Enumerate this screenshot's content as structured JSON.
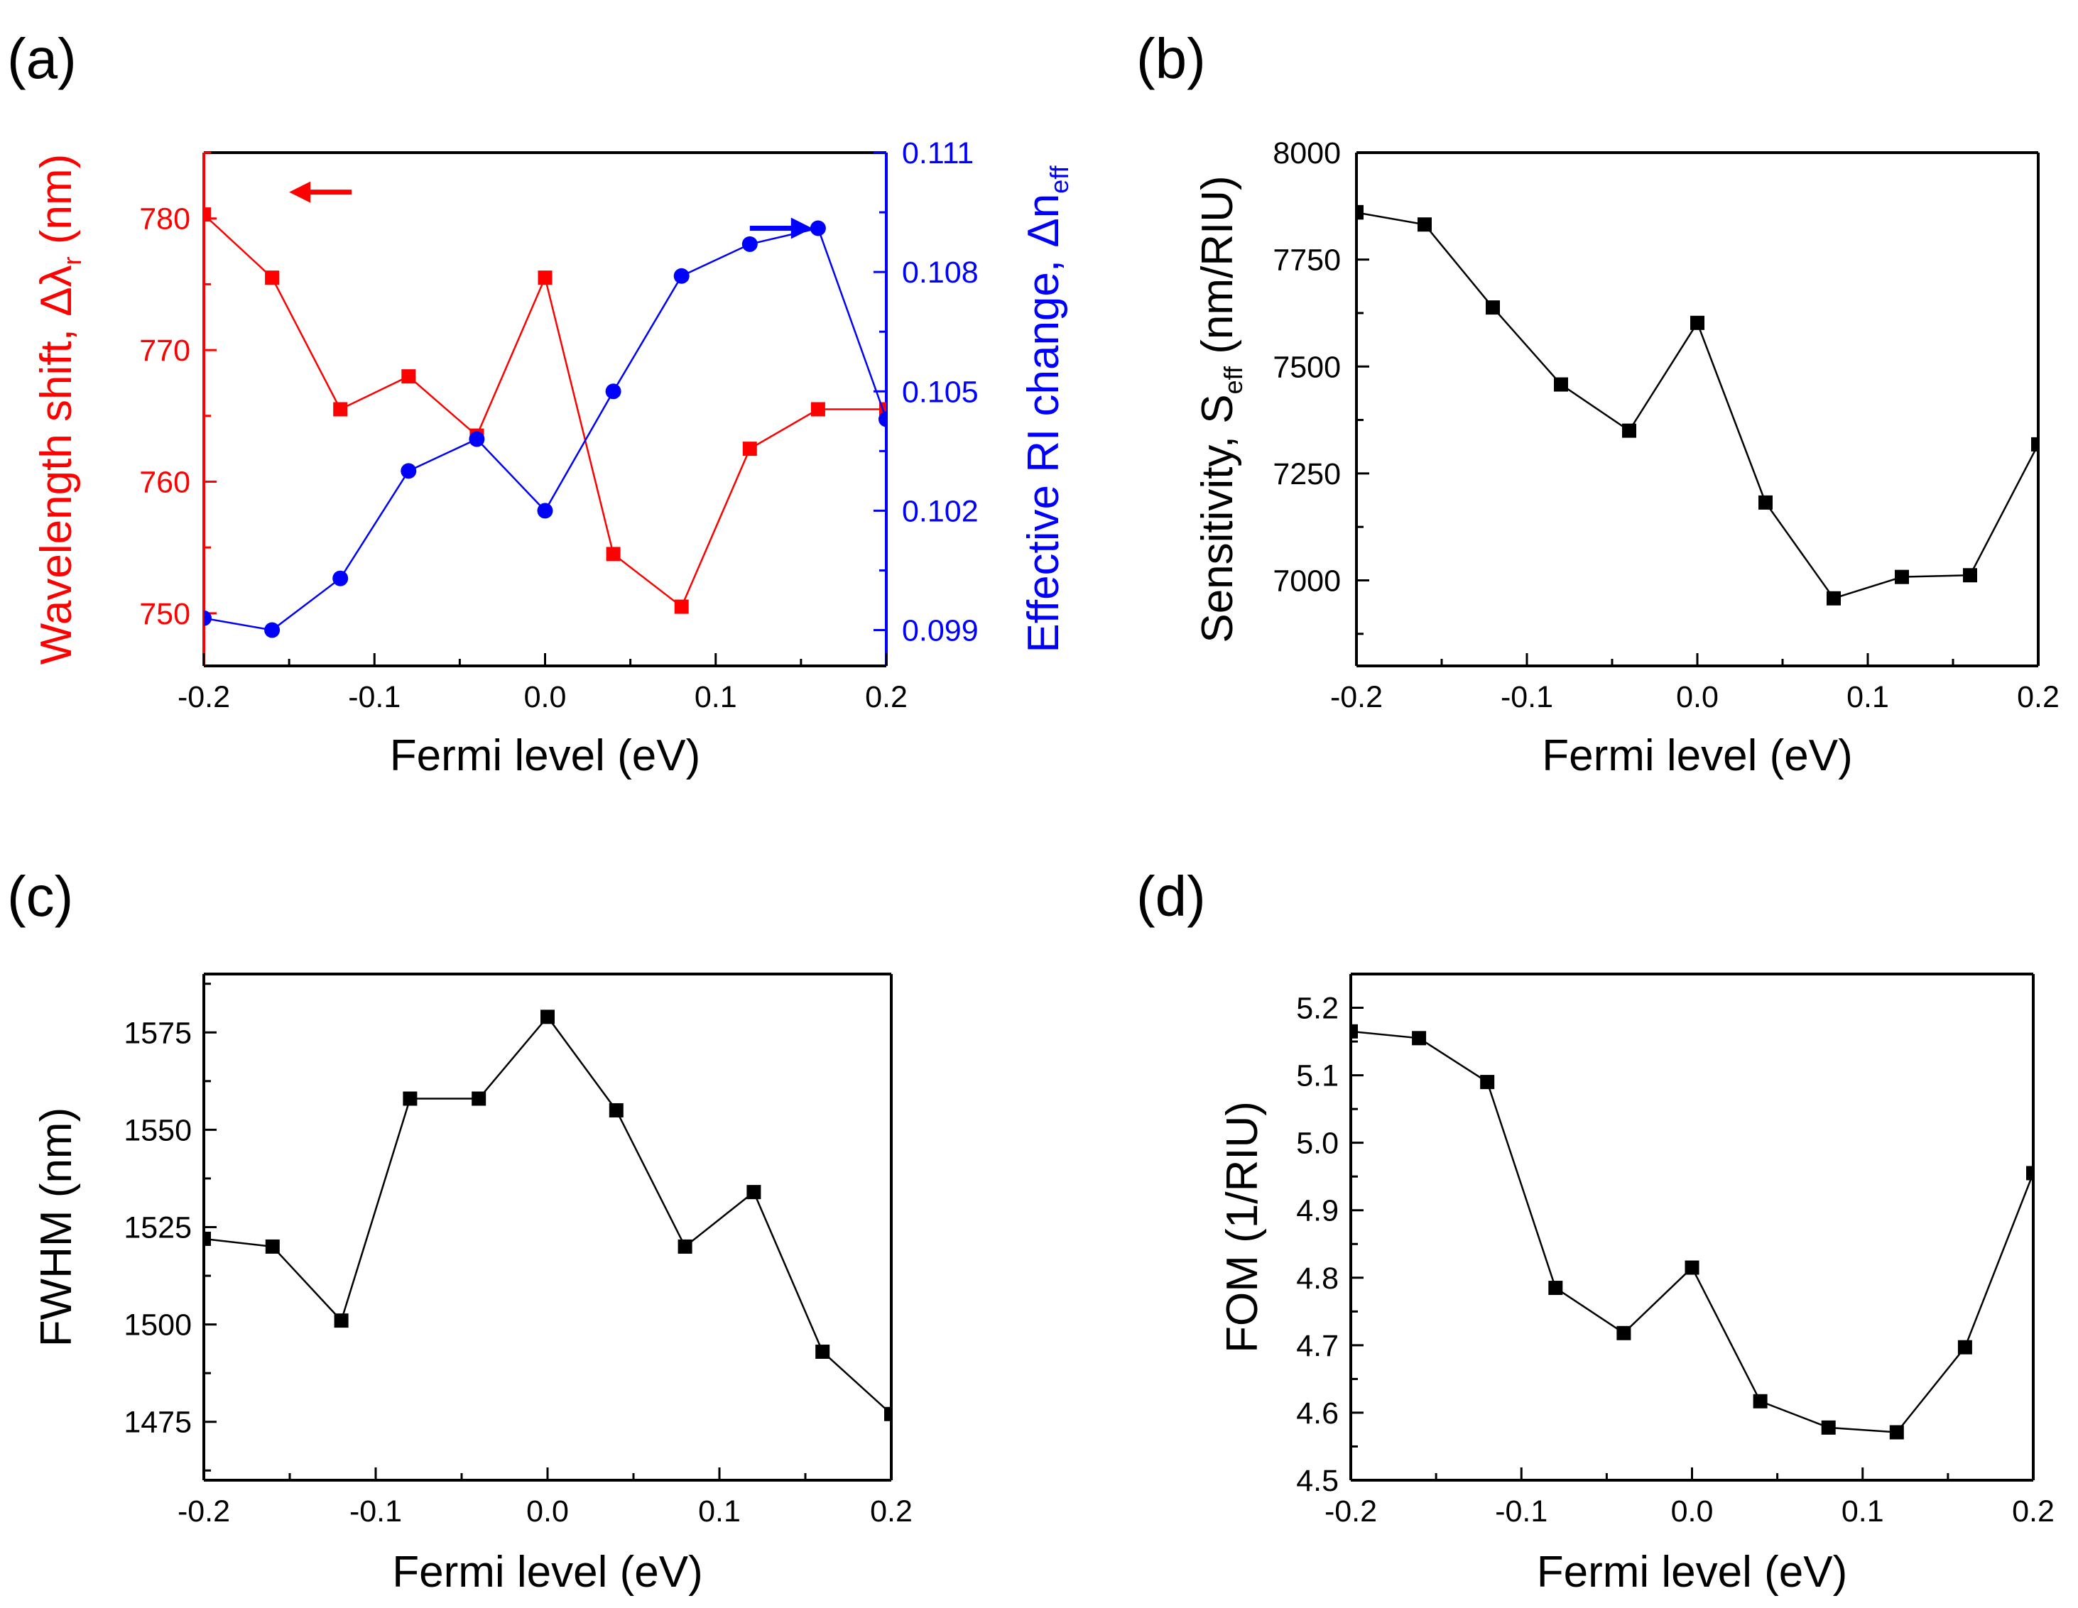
{
  "colors": {
    "red": "#ff0000",
    "blue": "#0000ff",
    "black": "#000000"
  },
  "chart_data": [
    {
      "id": "a",
      "panel_label": "(a)",
      "type": "line",
      "x": [
        -0.2,
        -0.16,
        -0.12,
        -0.08,
        -0.04,
        0.0,
        0.04,
        0.08,
        0.12,
        0.16,
        0.2
      ],
      "xlabel": "Fermi level (eV)",
      "xlim": [
        -0.2,
        0.2
      ],
      "xticks": [
        -0.2,
        -0.1,
        0.0,
        0.1,
        0.2
      ],
      "xtick_labels": [
        "-0.2",
        "-0.1",
        "0.0",
        "0.1",
        "0.2"
      ],
      "ylabel_left": {
        "text": "Wavelength shift, Δλ",
        "sub": "r",
        "suffix": " (nm)"
      },
      "ylabel_right": {
        "text": "Effective RI change, Δn",
        "sub": "eff",
        "suffix": ""
      },
      "ylim_left": [
        746,
        785
      ],
      "yticks_left": [
        750,
        760,
        770,
        780
      ],
      "ytick_labels_left": [
        "750",
        "760",
        "770",
        "780"
      ],
      "ylim_right": [
        0.0981,
        0.111
      ],
      "yticks_right": [
        0.099,
        0.102,
        0.105,
        0.108,
        0.111
      ],
      "ytick_labels_right": [
        "0.099",
        "0.102",
        "0.105",
        "0.108",
        "0.111"
      ],
      "series": [
        {
          "axis": "left",
          "marker": "square",
          "color": "red",
          "values": [
            780.3,
            775.5,
            765.5,
            768.0,
            763.5,
            775.5,
            754.5,
            750.5,
            762.5,
            765.5,
            765.5
          ]
        },
        {
          "axis": "right",
          "marker": "circle",
          "color": "blue",
          "values": [
            0.0993,
            0.099,
            0.1003,
            0.103,
            0.1038,
            0.102,
            0.105,
            0.1079,
            0.1087,
            0.1091,
            0.1043
          ]
        }
      ],
      "arrows": [
        {
          "direction": "left",
          "color": "red",
          "x": -0.15,
          "y": 782.0
        },
        {
          "direction": "right",
          "color": "blue",
          "x": 0.12,
          "y": 0.1091
        }
      ]
    },
    {
      "id": "b",
      "panel_label": "(b)",
      "type": "line",
      "x": [
        -0.2,
        -0.16,
        -0.12,
        -0.08,
        -0.04,
        0.0,
        0.04,
        0.08,
        0.12,
        0.16,
        0.2
      ],
      "xlabel": "Fermi level (eV)",
      "xlim": [
        -0.2,
        0.2
      ],
      "xticks": [
        -0.2,
        -0.1,
        0.0,
        0.1,
        0.2
      ],
      "xtick_labels": [
        "-0.2",
        "-0.1",
        "0.0",
        "0.1",
        "0.2"
      ],
      "ylabel_left": {
        "text": "Sensitivity, S",
        "sub": "eff",
        "suffix": " (nm/RIU)"
      },
      "ylim_left": [
        6800,
        8000
      ],
      "yticks_left": [
        7000,
        7250,
        7500,
        7750,
        8000
      ],
      "ytick_labels_left": [
        "7000",
        "7250",
        "7500",
        "7750",
        "8000"
      ],
      "series": [
        {
          "axis": "left",
          "marker": "square",
          "color": "black",
          "values": [
            7860,
            7832,
            7638,
            7458,
            7350,
            7602,
            7182,
            6958,
            7008,
            7012,
            7318
          ]
        }
      ]
    },
    {
      "id": "c",
      "panel_label": "(c)",
      "type": "line",
      "x": [
        -0.2,
        -0.16,
        -0.12,
        -0.08,
        -0.04,
        0.0,
        0.04,
        0.08,
        0.12,
        0.16,
        0.2
      ],
      "xlabel": "Fermi level (eV)",
      "xlim": [
        -0.2,
        0.2
      ],
      "xticks": [
        -0.2,
        -0.1,
        0.0,
        0.1,
        0.2
      ],
      "xtick_labels": [
        "-0.2",
        "-0.1",
        "0.0",
        "0.1",
        "0.2"
      ],
      "ylabel_left": {
        "text": "FWHM (nm)",
        "sub": "",
        "suffix": ""
      },
      "ylim_left": [
        1460,
        1590
      ],
      "yticks_left": [
        1475,
        1500,
        1525,
        1550,
        1575
      ],
      "ytick_labels_left": [
        "1475",
        "1500",
        "1525",
        "1550",
        "1575"
      ],
      "series": [
        {
          "axis": "left",
          "marker": "square",
          "color": "black",
          "values": [
            1522,
            1520,
            1501,
            1558,
            1558,
            1579,
            1555,
            1520,
            1534,
            1493,
            1477
          ]
        }
      ]
    },
    {
      "id": "d",
      "panel_label": "(d)",
      "type": "line",
      "x": [
        -0.2,
        -0.16,
        -0.12,
        -0.08,
        -0.04,
        0.0,
        0.04,
        0.08,
        0.12,
        0.16,
        0.2
      ],
      "xlabel": "Fermi level (eV)",
      "xlim": [
        -0.2,
        0.2
      ],
      "xticks": [
        -0.2,
        -0.1,
        0.0,
        0.1,
        0.2
      ],
      "xtick_labels": [
        "-0.2",
        "-0.1",
        "0.0",
        "0.1",
        "0.2"
      ],
      "ylabel_left": {
        "text": "FOM (1/RIU)",
        "sub": "",
        "suffix": ""
      },
      "ylim_left": [
        4.5,
        5.25
      ],
      "yticks_left": [
        4.5,
        4.6,
        4.7,
        4.8,
        4.9,
        5.0,
        5.1,
        5.2
      ],
      "ytick_labels_left": [
        "4.5",
        "4.6",
        "4.7",
        "4.8",
        "4.9",
        "5.0",
        "5.1",
        "5.2"
      ],
      "series": [
        {
          "axis": "left",
          "marker": "square",
          "color": "black",
          "values": [
            5.165,
            5.155,
            5.09,
            4.785,
            4.718,
            4.815,
            4.617,
            4.578,
            4.571,
            4.697,
            4.955
          ]
        }
      ]
    }
  ]
}
